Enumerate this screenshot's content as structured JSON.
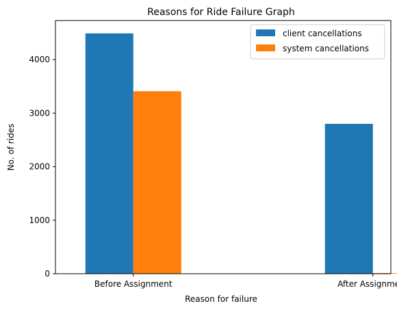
{
  "chart_data": {
    "type": "bar",
    "title": "Reasons for Ride Failure Graph",
    "xlabel": "Reason for failure",
    "ylabel": "No. of rides",
    "categories": [
      "Before Assignment",
      "After Assignment"
    ],
    "series": [
      {
        "name": "client cancellations",
        "values": [
          4490,
          2800
        ],
        "color": "#1f77b4"
      },
      {
        "name": "system cancellations",
        "values": [
          3410,
          12
        ],
        "color": "#ff7f0e"
      }
    ],
    "ylim": [
      0,
      4730
    ],
    "yticks": [
      0,
      1000,
      2000,
      3000,
      4000
    ],
    "grid": false,
    "legend_position": "top-right"
  }
}
